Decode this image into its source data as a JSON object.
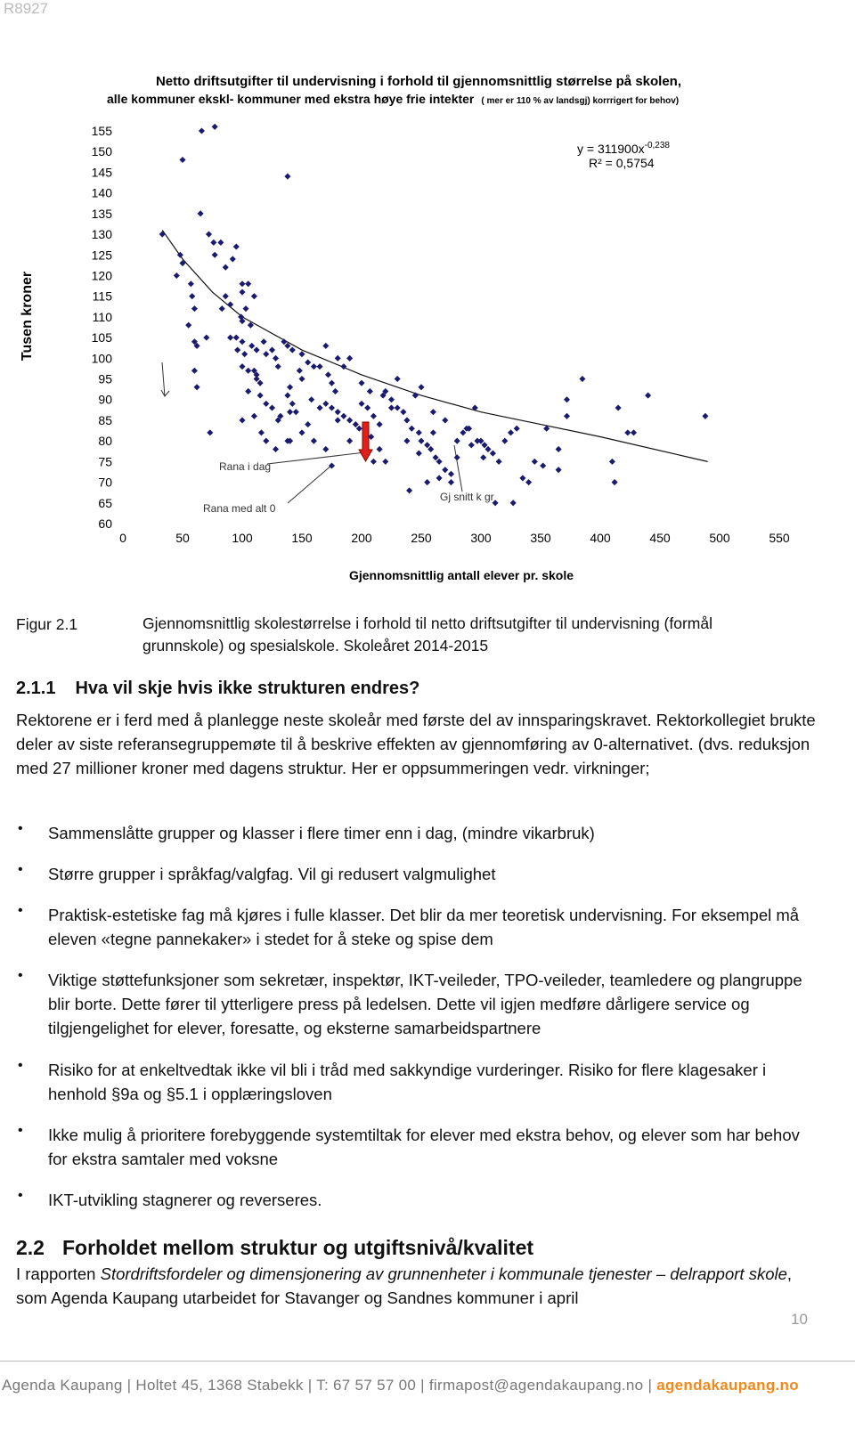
{
  "header": {
    "code": "R8927"
  },
  "chart_data": {
    "type": "scatter",
    "title": [
      "Netto driftsutgifter til undervisning i forhold til gjennomsnittlig størrelse på skolen,",
      "alle kommuner ekskl- kommuner med  ekstra høye frie intekter",
      "( mer er 110 % av  landsgj) korrrigert for behov)"
    ],
    "y_label": "Tusen kroner",
    "x_label": "Gjennomsnittlig antall elever pr. skole",
    "xlim": [
      0,
      550
    ],
    "xticks": [
      0,
      50,
      100,
      150,
      200,
      250,
      300,
      350,
      400,
      450,
      500,
      550
    ],
    "ylim": [
      60,
      155
    ],
    "yticks": [
      60,
      65,
      70,
      75,
      80,
      85,
      90,
      95,
      100,
      105,
      110,
      115,
      120,
      125,
      130,
      135,
      140,
      145,
      150,
      155
    ],
    "color": "#1a1a6e",
    "x": [
      66,
      77,
      50,
      138,
      33,
      65,
      48,
      50,
      45,
      57,
      58,
      60,
      55,
      70,
      60,
      62,
      60,
      62,
      73,
      72,
      76,
      82,
      77,
      95,
      86,
      92,
      100,
      86,
      83,
      90,
      100,
      105,
      110,
      103,
      100,
      99,
      107,
      95,
      90,
      96,
      100,
      108,
      112,
      118,
      102,
      105,
      100,
      110,
      112,
      115,
      120,
      125,
      128,
      130,
      135,
      138,
      142,
      150,
      148,
      150,
      155,
      160,
      165,
      170,
      172,
      175,
      180,
      185,
      190,
      178,
      140,
      138,
      142,
      140,
      132,
      130,
      125,
      120,
      115,
      112,
      105,
      100,
      110,
      116,
      120,
      128,
      140,
      150,
      155,
      145,
      158,
      165,
      170,
      175,
      180,
      185,
      190,
      195,
      198,
      200,
      205,
      210,
      215,
      218,
      225,
      230,
      235,
      238,
      242,
      248,
      250,
      255,
      258,
      262,
      265,
      270,
      275,
      280,
      285,
      290,
      292,
      297,
      300,
      303,
      306,
      310,
      315,
      320,
      325,
      330,
      335,
      340,
      345,
      352,
      355,
      365,
      365,
      372,
      372,
      385,
      410,
      412,
      415,
      423,
      428,
      440,
      488,
      245,
      250,
      260,
      270,
      200,
      207,
      220,
      312,
      327,
      240,
      255,
      265,
      275,
      180,
      170,
      230,
      225,
      208,
      215,
      238,
      248,
      260,
      280,
      288,
      295,
      302,
      220,
      210,
      190,
      160,
      175,
      138
    ],
    "values": [
      155,
      156,
      148,
      144,
      130,
      135,
      125,
      123,
      120,
      118,
      115,
      112,
      108,
      105,
      104,
      103,
      97,
      93,
      82,
      130,
      128,
      128,
      125,
      127,
      122,
      124,
      118,
      115,
      112,
      113,
      116,
      118,
      115,
      112,
      109,
      110,
      108,
      105,
      105,
      102,
      104,
      103,
      102,
      104,
      101,
      97,
      98,
      97,
      96,
      94,
      101,
      102,
      100,
      98,
      104,
      103,
      102,
      101,
      97,
      95,
      99,
      98,
      98,
      103,
      96,
      94,
      100,
      98,
      100,
      92,
      93,
      91,
      89,
      87,
      86,
      85,
      88,
      89,
      91,
      95,
      92,
      85,
      86,
      82,
      80,
      78,
      80,
      82,
      84,
      87,
      90,
      88,
      89,
      88,
      87,
      86,
      85,
      84,
      83,
      89,
      88,
      86,
      84,
      91,
      90,
      88,
      87,
      85,
      83,
      82,
      80,
      79,
      78,
      76,
      75,
      73,
      72,
      80,
      82,
      83,
      79,
      80,
      80,
      79,
      78,
      77,
      75,
      80,
      82,
      83,
      71,
      70,
      75,
      74,
      83,
      78,
      73,
      86,
      90,
      95,
      75,
      70,
      88,
      82,
      82,
      91,
      86,
      91,
      93,
      87,
      85,
      94,
      92,
      92,
      65,
      65,
      68,
      70,
      71,
      70,
      85,
      78,
      95,
      88,
      81,
      78,
      80,
      77,
      82,
      76,
      83,
      88,
      76,
      75,
      75,
      80,
      80,
      74,
      80
    ],
    "trendline": {
      "x": [
        33,
        50,
        75,
        100,
        150,
        200,
        250,
        300,
        350,
        400,
        490
      ],
      "values": [
        131,
        124,
        116,
        110,
        102,
        96,
        91,
        87,
        84,
        81,
        75
      ]
    },
    "equation": "y = 311900x",
    "equation_exponent": "-0,238",
    "r_squared": "R² = 0,5754",
    "annotations": [
      "Rana i dag",
      "Rana med alt 0",
      "Gj snitt k gr"
    ]
  },
  "caption": {
    "label": "Figur 2.1",
    "text": "Gjennomsnittlig skolestørrelse i forhold til netto driftsutgifter til undervisning (formål grunnskole) og spesialskole. Skoleåret 2014-2015"
  },
  "section1": {
    "number": "2.1.1",
    "title": "Hva vil skje hvis ikke strukturen endres?",
    "paragraph": "Rektorene er i ferd med å planlegge neste skoleår med første del av innsparingskravet. Rektorkollegiet brukte deler av siste referansegruppemøte til å beskrive effekten av gjennomføring av 0-alternativet. (dvs. reduksjon med 27 millioner kroner med dagens struktur. Her er oppsummeringen vedr. virkninger;",
    "bullets": [
      "Sammenslåtte grupper og klasser i flere timer enn i dag, (mindre vikarbruk)",
      "Større grupper i språkfag/valgfag. Vil gi redusert valgmulighet",
      "Praktisk-estetiske fag må kjøres i fulle klasser. Det blir da mer teoretisk undervisning. For eksempel må eleven «tegne pannekaker» i stedet for å steke og spise dem",
      "Viktige støttefunksjoner som sekretær, inspektør, IKT-veileder, TPO-veileder, teamledere og plangruppe blir borte. Dette fører til ytterligere press på ledelsen. Dette vil igjen medføre dårligere service og tilgjengelighet for elever, foresatte, og eksterne samarbeidspartnere",
      "Risiko for at enkeltvedtak ikke vil bli i tråd med sakkyndige vurderinger. Risiko for flere klagesaker i henhold §9a og §5.1 i opplæringsloven",
      "Ikke mulig å prioritere forebyggende systemtiltak for elever med ekstra behov, og elever som har behov for ekstra samtaler med voksne",
      "IKT-utvikling stagnerer og reverseres."
    ]
  },
  "section2": {
    "number": "2.2",
    "title": "Forholdet mellom struktur og utgiftsnivå/kvalitet",
    "paragraph": [
      "I rapporten ",
      "Stordriftsfordeler og dimensjonering av grunnenheter i kommunale tjenester – delrapport skole",
      ", som Agenda Kaupang utarbeidet for Stavanger og Sandnes kommuner i april"
    ]
  },
  "page_number": "10",
  "footer": {
    "text": "Agenda Kaupang | Holtet 45, 1368 Stabekk | T: 67 57 57 00 | firmapost@agendakaupang.no | ",
    "brand": "agendakaupang.no"
  }
}
